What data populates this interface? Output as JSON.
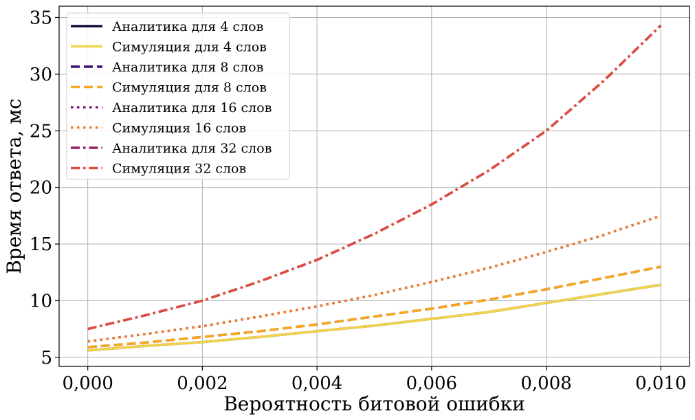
{
  "chart_data": {
    "type": "line",
    "xlabel": "Вероятность битовой ошибки",
    "ylabel": "Время ответа, мс",
    "xlim": [
      -0.0005,
      0.0105
    ],
    "ylim": [
      4.2,
      36
    ],
    "x_ticks": [
      0,
      0.002,
      0.004,
      0.006,
      0.008,
      0.01
    ],
    "x_tick_labels": [
      "0,000",
      "0,002",
      "0,004",
      "0,006",
      "0,008",
      "0,010"
    ],
    "y_ticks": [
      5,
      10,
      15,
      20,
      25,
      30,
      35
    ],
    "y_tick_labels": [
      "5",
      "10",
      "15",
      "20",
      "25",
      "30",
      "35"
    ],
    "grid": true,
    "legend_position": "top-left",
    "x": [
      0,
      0.001,
      0.002,
      0.003,
      0.004,
      0.005,
      0.006,
      0.007,
      0.008,
      0.009,
      0.01
    ],
    "series": [
      {
        "name": "Аналитика для 4 слов",
        "color": "#14093a",
        "style": "solid",
        "width": 3.5,
        "values": [
          5.6,
          6.0,
          6.35,
          6.8,
          7.3,
          7.8,
          8.4,
          9.0,
          9.8,
          10.6,
          11.4
        ]
      },
      {
        "name": "Симуляция для 4 слов",
        "color": "#f2d34a",
        "style": "solid",
        "width": 3.5,
        "values": [
          5.6,
          6.0,
          6.35,
          6.8,
          7.3,
          7.8,
          8.4,
          9.0,
          9.8,
          10.6,
          11.4
        ]
      },
      {
        "name": "Аналитика для 8 слов",
        "color": "#3b0f6f",
        "style": "dashed",
        "width": 3.5,
        "values": [
          5.9,
          6.3,
          6.8,
          7.3,
          7.9,
          8.6,
          9.3,
          10.1,
          11.0,
          12.0,
          13.0
        ]
      },
      {
        "name": "Симуляция для 8 слов",
        "color": "#f9a71c",
        "style": "dashed",
        "width": 3.5,
        "values": [
          5.9,
          6.3,
          6.8,
          7.3,
          7.9,
          8.6,
          9.3,
          10.1,
          11.0,
          12.0,
          13.0
        ]
      },
      {
        "name": "Аналитика для 16 слов",
        "color": "#7b1a7c",
        "style": "dotted",
        "width": 3.5,
        "values": [
          6.4,
          7.05,
          7.75,
          8.6,
          9.5,
          10.5,
          11.65,
          12.9,
          14.3,
          15.8,
          17.5
        ]
      },
      {
        "name": "Симуляция 16 слов",
        "color": "#f07b26",
        "style": "dotted",
        "width": 3.5,
        "values": [
          6.4,
          7.05,
          7.75,
          8.6,
          9.5,
          10.5,
          11.65,
          12.9,
          14.3,
          15.8,
          17.5
        ]
      },
      {
        "name": "Аналитика для 32 слов",
        "color": "#9b1d5e",
        "style": "dashdot",
        "width": 3.5,
        "values": [
          7.5,
          8.7,
          10.0,
          11.7,
          13.6,
          15.9,
          18.5,
          21.5,
          25.0,
          29.4,
          34.3
        ]
      },
      {
        "name": "Симуляция 32 слов",
        "color": "#de4b3d",
        "style": "dashdot",
        "width": 3.5,
        "values": [
          7.5,
          8.7,
          10.0,
          11.7,
          13.6,
          15.9,
          18.5,
          21.5,
          25.0,
          29.4,
          34.3
        ]
      }
    ]
  }
}
